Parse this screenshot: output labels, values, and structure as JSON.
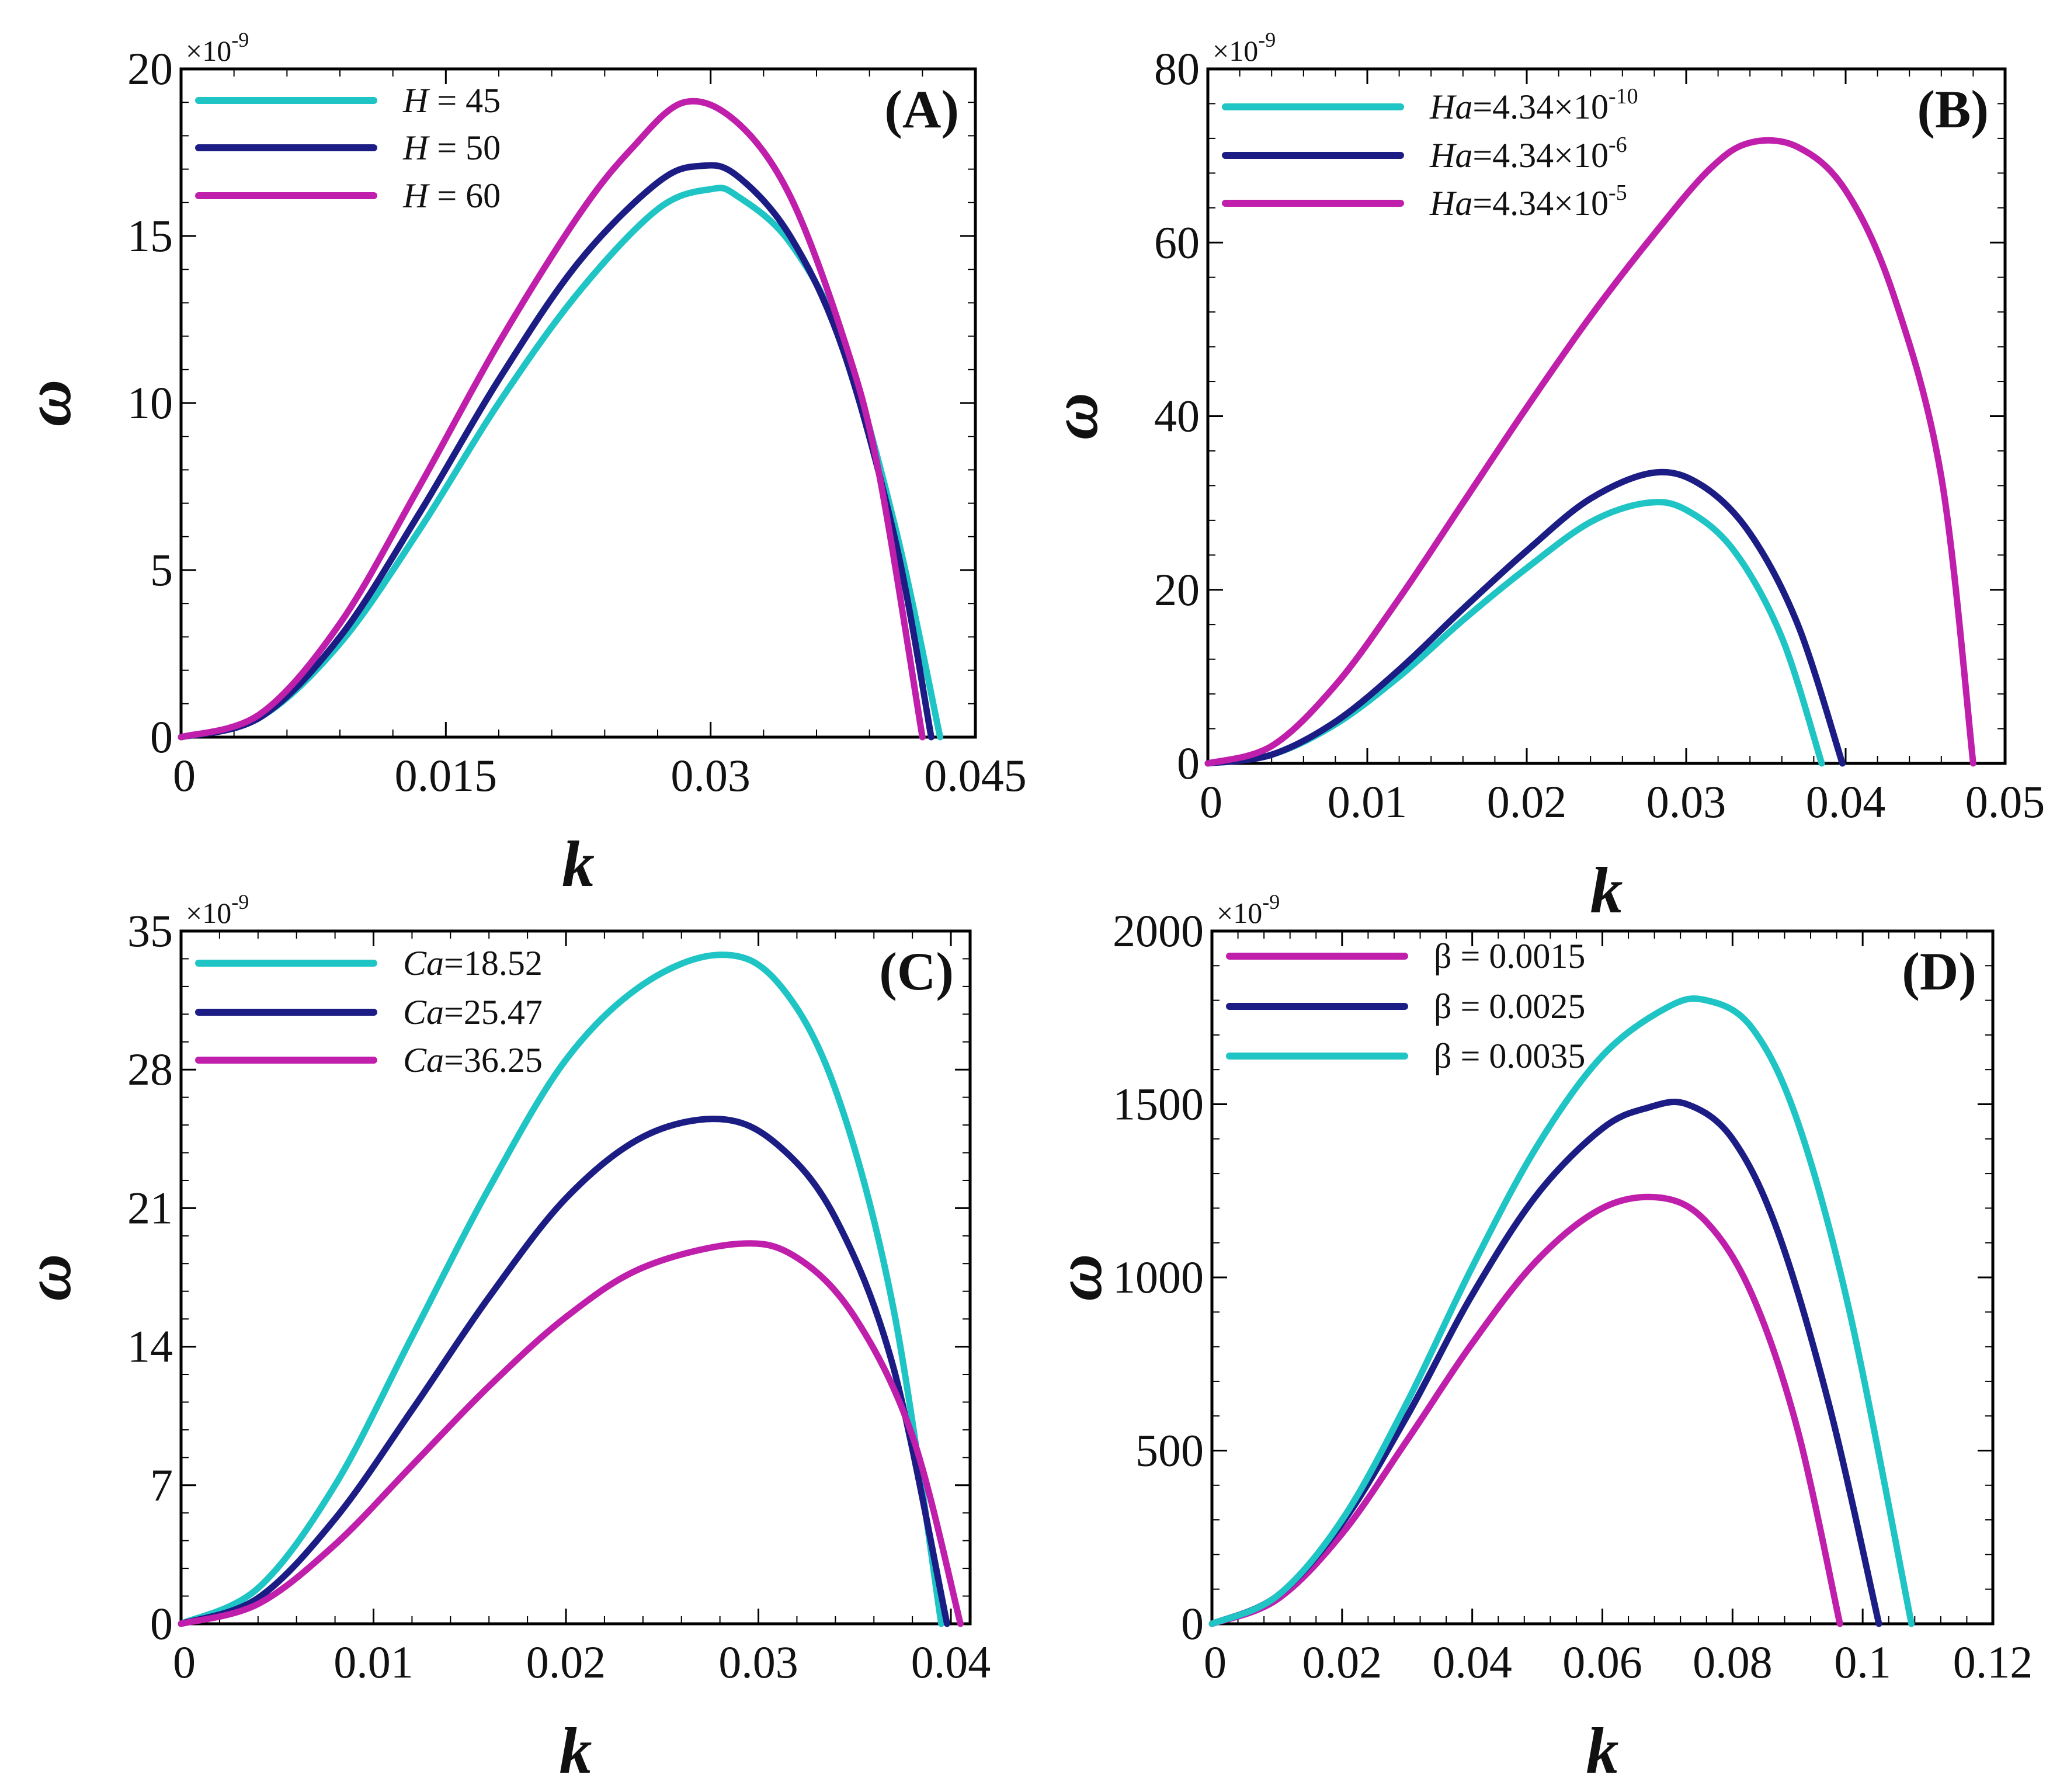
{
  "colors": {
    "cyan": "#1fc4c4",
    "navy": "#1c1c85",
    "magenta": "#bf1fab"
  },
  "chart_data": [
    {
      "type": "line",
      "panel_label": "(A)",
      "xlabel": "k",
      "ylabel": "ω",
      "y_multiplier": "×10",
      "y_exponent": "-9",
      "xlim": [
        0,
        0.045
      ],
      "ylim": [
        0,
        20
      ],
      "xticks": [
        0,
        0.015,
        0.03,
        0.045
      ],
      "xtick_labels": [
        "0",
        "0.015",
        "0.03",
        "0.045"
      ],
      "yticks": [
        0,
        5,
        10,
        15,
        20
      ],
      "ytick_labels": [
        "0",
        "5",
        "10",
        "15",
        "20"
      ],
      "series": [
        {
          "name": "H = 45",
          "legend_var": "H",
          "legend_rest": " = 45",
          "color": "#1fc4c4",
          "x": [
            0,
            0.0045,
            0.009,
            0.0135,
            0.018,
            0.0225,
            0.027,
            0.03,
            0.0315,
            0.0345,
            0.0375,
            0.0405,
            0.043
          ],
          "y": [
            0,
            0.6,
            2.8,
            6.2,
            10.0,
            13.3,
            15.8,
            16.4,
            16.2,
            14.8,
            11.8,
            6.2,
            0
          ]
        },
        {
          "name": "H = 50",
          "legend_var": "H",
          "legend_rest": " = 50",
          "color": "#1c1c85",
          "x": [
            0,
            0.0045,
            0.009,
            0.0135,
            0.018,
            0.0225,
            0.027,
            0.0295,
            0.0315,
            0.0345,
            0.0375,
            0.0405,
            0.0425
          ],
          "y": [
            0,
            0.6,
            3.0,
            6.7,
            10.7,
            14.2,
            16.6,
            17.1,
            16.8,
            15.0,
            11.6,
            5.8,
            0
          ]
        },
        {
          "name": "H = 60",
          "legend_var": "H",
          "legend_rest": " = 60",
          "color": "#bf1fab",
          "x": [
            0,
            0.0045,
            0.009,
            0.0135,
            0.018,
            0.0225,
            0.0255,
            0.0285,
            0.0315,
            0.0345,
            0.0375,
            0.0395,
            0.042
          ],
          "y": [
            0,
            0.7,
            3.4,
            7.5,
            11.8,
            15.6,
            17.6,
            19.0,
            18.4,
            16.2,
            12.0,
            8.0,
            0
          ]
        }
      ]
    },
    {
      "type": "line",
      "panel_label": "(B)",
      "xlabel": "k",
      "ylabel": "ω",
      "y_multiplier": "×10",
      "y_exponent": "-9",
      "xlim": [
        0,
        0.05
      ],
      "ylim": [
        0,
        80
      ],
      "xticks": [
        0,
        0.01,
        0.02,
        0.03,
        0.04,
        0.05
      ],
      "xtick_labels": [
        "0",
        "0.01",
        "0.02",
        "0.03",
        "0.04",
        "0.05"
      ],
      "yticks": [
        0,
        20,
        40,
        60,
        80
      ],
      "ytick_labels": [
        "0",
        "20",
        "40",
        "60",
        "80"
      ],
      "series": [
        {
          "name": "Ha=4.34×10-10",
          "legend_var": "Ha",
          "legend_rest": "=4.34×10",
          "legend_sup": "-10",
          "color": "#1fc4c4",
          "x": [
            0,
            0.004,
            0.008,
            0.012,
            0.016,
            0.02,
            0.024,
            0.0275,
            0.03,
            0.033,
            0.036,
            0.0385
          ],
          "y": [
            0,
            1.0,
            4.5,
            10.0,
            16.5,
            22.5,
            27.8,
            30.0,
            29.2,
            24.5,
            14.5,
            0
          ]
        },
        {
          "name": "Ha=4.34×10-6",
          "legend_var": "Ha",
          "legend_rest": "=4.34×10",
          "legend_sup": "-6",
          "color": "#1c1c85",
          "x": [
            0,
            0.004,
            0.008,
            0.012,
            0.016,
            0.02,
            0.024,
            0.028,
            0.031,
            0.034,
            0.037,
            0.0398
          ],
          "y": [
            0,
            1.0,
            4.8,
            10.8,
            17.8,
            24.5,
            30.5,
            33.5,
            32.0,
            26.5,
            16.0,
            0
          ]
        },
        {
          "name": "Ha=4.34×10-5",
          "legend_var": "Ha",
          "legend_rest": "=4.34×10",
          "legend_sup": "-5",
          "color": "#bf1fab",
          "x": [
            0,
            0.004,
            0.008,
            0.012,
            0.016,
            0.02,
            0.024,
            0.028,
            0.0315,
            0.034,
            0.037,
            0.04,
            0.043,
            0.046,
            0.048
          ],
          "y": [
            0,
            2.0,
            9.0,
            19.0,
            30.0,
            41.0,
            51.5,
            61.0,
            68.5,
            71.5,
            71.0,
            66.0,
            54.0,
            33.0,
            0
          ]
        }
      ]
    },
    {
      "type": "line",
      "panel_label": "(C)",
      "xlabel": "k",
      "ylabel": "ω",
      "y_multiplier": "×10",
      "y_exponent": "-9",
      "xlim": [
        0,
        0.041
      ],
      "ylim": [
        0,
        35
      ],
      "xticks": [
        0,
        0.01,
        0.02,
        0.03,
        0.04
      ],
      "xtick_labels": [
        "0",
        "0.01",
        "0.02",
        "0.03",
        "0.04"
      ],
      "yticks": [
        0,
        7,
        14,
        21,
        28,
        35
      ],
      "ytick_labels": [
        "0",
        "7",
        "14",
        "21",
        "28",
        "35"
      ],
      "series": [
        {
          "name": "Ca=18.52",
          "legend_var": "Ca",
          "legend_rest": "=18.52",
          "color": "#1fc4c4",
          "x": [
            0,
            0.004,
            0.008,
            0.012,
            0.016,
            0.02,
            0.024,
            0.028,
            0.031,
            0.034,
            0.037,
            0.0395
          ],
          "y": [
            0,
            1.8,
            7.0,
            14.5,
            22.0,
            28.5,
            32.3,
            33.8,
            32.4,
            27.0,
            16.0,
            0
          ]
        },
        {
          "name": "Ca=25.47",
          "legend_var": "Ca",
          "legend_rest": "=25.47",
          "color": "#1c1c85",
          "x": [
            0,
            0.004,
            0.008,
            0.012,
            0.016,
            0.02,
            0.024,
            0.028,
            0.031,
            0.034,
            0.037,
            0.0398
          ],
          "y": [
            0,
            1.3,
            5.3,
            10.8,
            16.5,
            21.5,
            24.6,
            25.5,
            24.2,
            20.5,
            13.0,
            0
          ]
        },
        {
          "name": "Ca=36.25",
          "legend_var": "Ca",
          "legend_rest": "=36.25",
          "color": "#bf1fab",
          "x": [
            0,
            0.004,
            0.008,
            0.012,
            0.016,
            0.02,
            0.024,
            0.029,
            0.032,
            0.035,
            0.038,
            0.0405
          ],
          "y": [
            0,
            1.0,
            4.0,
            8.0,
            12.0,
            15.5,
            18.0,
            19.2,
            18.5,
            15.5,
            9.5,
            0
          ]
        }
      ]
    },
    {
      "type": "line",
      "panel_label": "(D)",
      "xlabel": "k",
      "ylabel": "ω",
      "y_multiplier": "×10",
      "y_exponent": "-9",
      "xlim": [
        0,
        0.12
      ],
      "ylim": [
        0,
        2000
      ],
      "xticks": [
        0,
        0.02,
        0.04,
        0.06,
        0.08,
        0.1,
        0.12
      ],
      "xtick_labels": [
        "0",
        "0.02",
        "0.04",
        "0.06",
        "0.08",
        "0.1",
        "0.12"
      ],
      "yticks": [
        0,
        500,
        1000,
        1500,
        2000
      ],
      "ytick_labels": [
        "0",
        "500",
        "1000",
        "1500",
        "2000"
      ],
      "series": [
        {
          "name": "β = 0.0015",
          "legend_var": "",
          "legend_rest": "β = 0.0015",
          "color": "#bf1fab",
          "x": [
            0,
            0.01,
            0.02,
            0.03,
            0.04,
            0.05,
            0.06,
            0.069,
            0.076,
            0.083,
            0.09,
            0.0965
          ],
          "y": [
            0,
            70,
            260,
            530,
            810,
            1050,
            1200,
            1230,
            1160,
            950,
            560,
            0
          ]
        },
        {
          "name": "β = 0.0025",
          "legend_var": "",
          "legend_rest": "β = 0.0025",
          "color": "#1c1c85",
          "x": [
            0,
            0.01,
            0.02,
            0.03,
            0.04,
            0.05,
            0.06,
            0.067,
            0.073,
            0.08,
            0.087,
            0.095,
            0.1025
          ],
          "y": [
            0,
            80,
            290,
            600,
            950,
            1240,
            1430,
            1490,
            1500,
            1400,
            1130,
            620,
            0
          ]
        },
        {
          "name": "β = 0.0035",
          "legend_var": "",
          "legend_rest": "β = 0.0035",
          "color": "#1fc4c4",
          "x": [
            0,
            0.01,
            0.02,
            0.03,
            0.04,
            0.05,
            0.06,
            0.07,
            0.076,
            0.083,
            0.09,
            0.098,
            0.1075
          ],
          "y": [
            0,
            80,
            300,
            640,
            1030,
            1380,
            1640,
            1780,
            1800,
            1720,
            1450,
            900,
            0
          ]
        }
      ]
    }
  ]
}
